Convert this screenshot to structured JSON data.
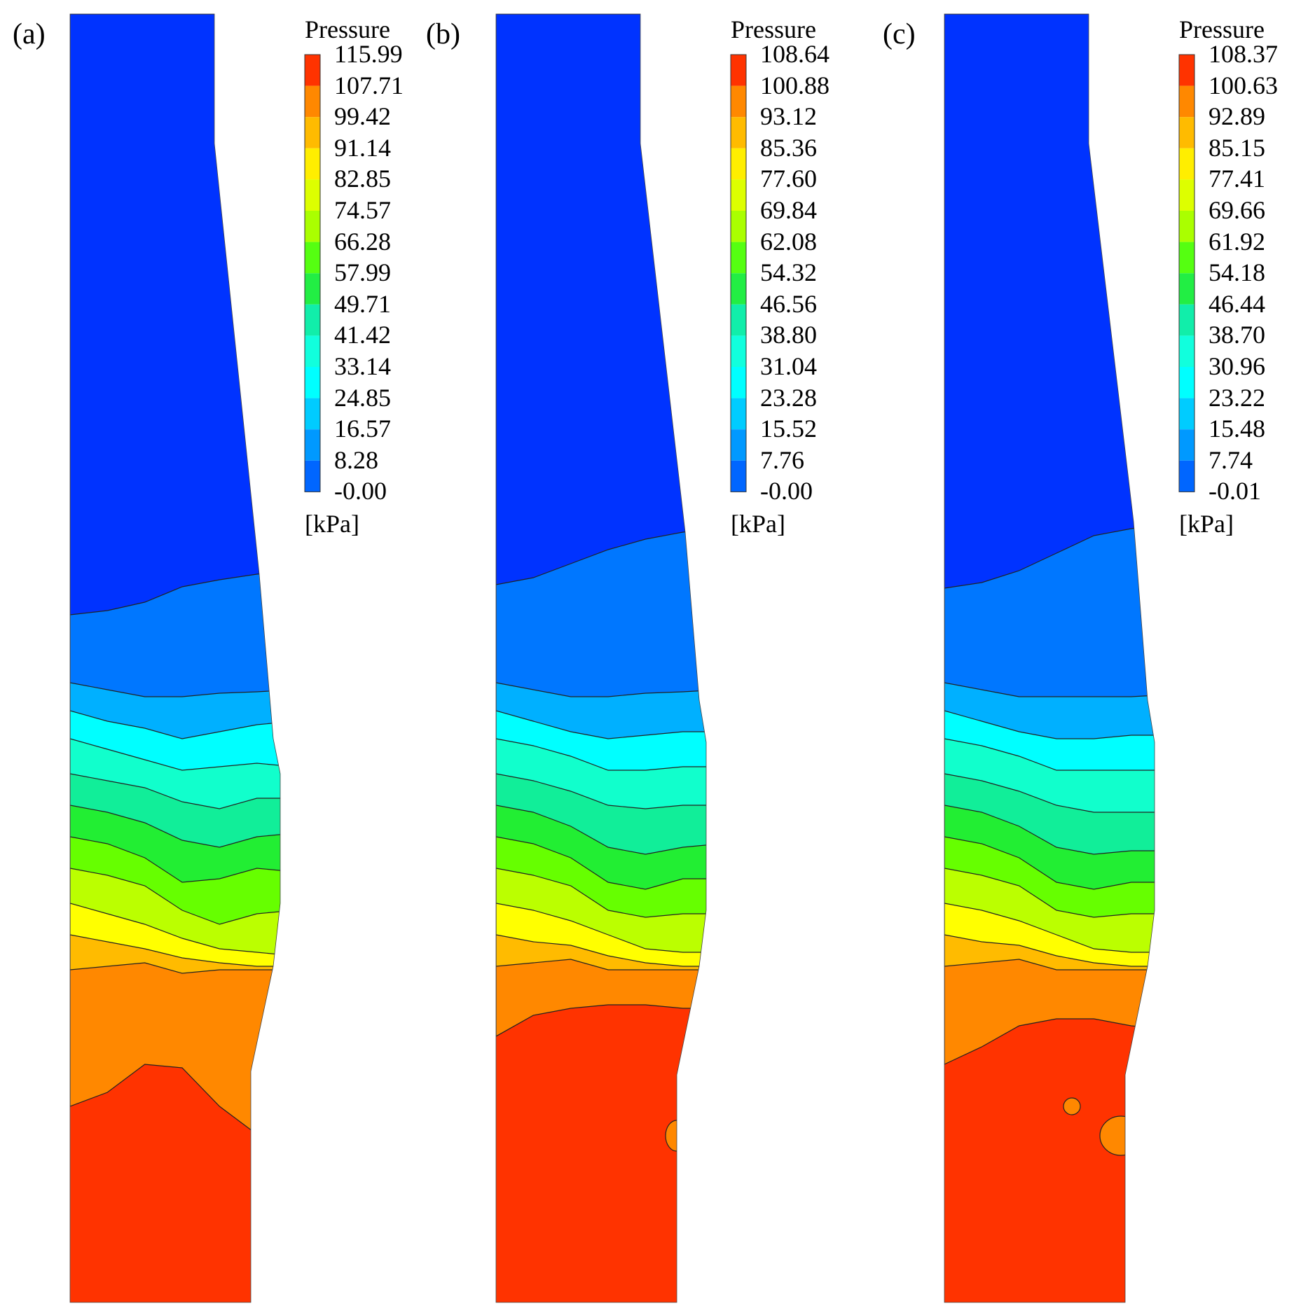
{
  "chart_data": [
    {
      "type": "heatmap",
      "panel_label": "(a)",
      "title": "Pressure",
      "unit": "[kPa]",
      "levels": [
        "115.99",
        "107.71",
        "99.42",
        "91.14",
        "82.85",
        "74.57",
        "66.28",
        "57.99",
        "49.71",
        "41.42",
        "33.14",
        "24.85",
        "16.57",
        "8.28",
        "-0.00"
      ],
      "band_colors": [
        "#ff3300",
        "#ff8800",
        "#ffbb00",
        "#ffee00",
        "#ddff00",
        "#aaff00",
        "#55ff11",
        "#22ee44",
        "#11eeaa",
        "#11ffdd",
        "#00ffff",
        "#00ccff",
        "#0099ff",
        "#0066ff"
      ]
    },
    {
      "type": "heatmap",
      "panel_label": "(b)",
      "title": "Pressure",
      "unit": "[kPa]",
      "levels": [
        "108.64",
        "100.88",
        "93.12",
        "85.36",
        "77.60",
        "69.84",
        "62.08",
        "54.32",
        "46.56",
        "38.80",
        "31.04",
        "23.28",
        "15.52",
        "7.76",
        "-0.00"
      ],
      "band_colors": [
        "#ff3300",
        "#ff8800",
        "#ffbb00",
        "#ffee00",
        "#ddff00",
        "#aaff00",
        "#55ff11",
        "#22ee44",
        "#11eeaa",
        "#11ffdd",
        "#00ffff",
        "#00ccff",
        "#0099ff",
        "#0066ff"
      ]
    },
    {
      "type": "heatmap",
      "panel_label": "(c)",
      "title": "Pressure",
      "unit": "[kPa]",
      "levels": [
        "108.37",
        "100.63",
        "92.89",
        "85.15",
        "77.41",
        "69.66",
        "61.92",
        "54.18",
        "46.44",
        "38.70",
        "30.96",
        "23.22",
        "15.48",
        "7.74",
        "-0.01"
      ],
      "band_colors": [
        "#ff3300",
        "#ff8800",
        "#ffbb00",
        "#ffee00",
        "#ddff00",
        "#aaff00",
        "#55ff11",
        "#22ee44",
        "#11eeaa",
        "#11ffdd",
        "#00ffff",
        "#00ccff",
        "#0099ff",
        "#0066ff"
      ]
    }
  ],
  "colors": {
    "blue_deep": "#0033ff",
    "blue": "#0077ff",
    "sky": "#00b0ff",
    "cyan": "#00ffff",
    "aqua": "#11ffcc",
    "teal": "#11ee99",
    "green": "#22ee33",
    "lime": "#66ff00",
    "yellowgreen": "#bbff00",
    "yellow": "#ffff00",
    "amber": "#ffbb00",
    "orange": "#ff8800",
    "red": "#ff3300"
  }
}
